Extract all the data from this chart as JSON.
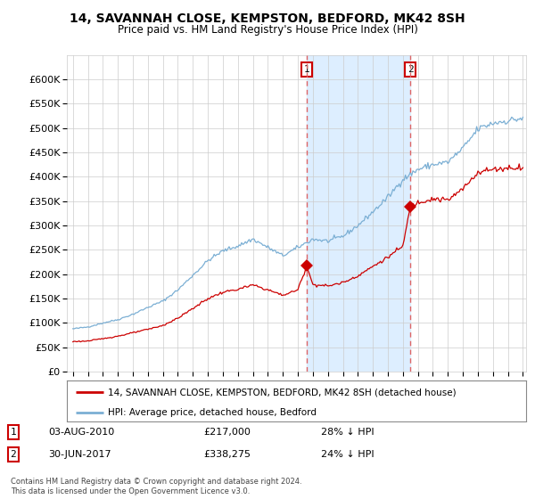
{
  "title": "14, SAVANNAH CLOSE, KEMPSTON, BEDFORD, MK42 8SH",
  "subtitle": "Price paid vs. HM Land Registry's House Price Index (HPI)",
  "legend_property": "14, SAVANNAH CLOSE, KEMPSTON, BEDFORD, MK42 8SH (detached house)",
  "legend_hpi": "HPI: Average price, detached house, Bedford",
  "transaction1_label": "1",
  "transaction1_date": "03-AUG-2010",
  "transaction1_price": "£217,000",
  "transaction1_hpi": "28% ↓ HPI",
  "transaction2_label": "2",
  "transaction2_date": "30-JUN-2017",
  "transaction2_price": "£338,275",
  "transaction2_hpi": "24% ↓ HPI",
  "footer": "Contains HM Land Registry data © Crown copyright and database right 2024.\nThis data is licensed under the Open Government Licence v3.0.",
  "ylim": [
    0,
    650000
  ],
  "yticks": [
    0,
    50000,
    100000,
    150000,
    200000,
    250000,
    300000,
    350000,
    400000,
    450000,
    500000,
    550000,
    600000
  ],
  "property_color": "#cc0000",
  "hpi_color": "#7bafd4",
  "shade_color": "#ddeeff",
  "dashed_line_color": "#dd6666",
  "marker1_x": 2010.58,
  "marker1_y": 217000,
  "marker2_x": 2017.5,
  "marker2_y": 338275,
  "vline1_x": 2010.58,
  "vline2_x": 2017.5,
  "xmin": 1995.0,
  "xmax": 2025.2
}
